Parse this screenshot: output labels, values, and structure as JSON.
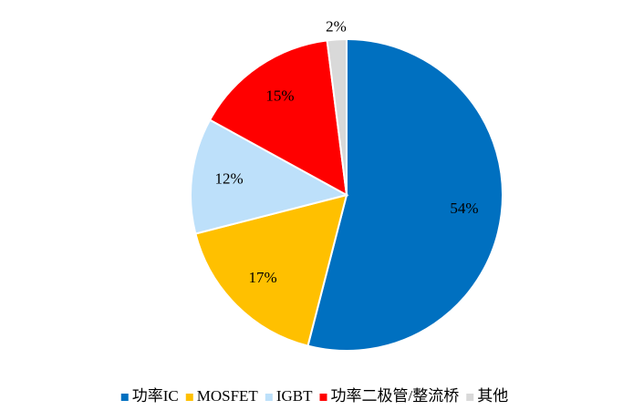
{
  "chart_data": {
    "type": "pie",
    "categories": [
      "功率IC",
      "MOSFET",
      "IGBT",
      "功率二极管/整流桥",
      "其他"
    ],
    "values": [
      54,
      17,
      12,
      15,
      2
    ],
    "value_labels": [
      "54%",
      "17%",
      "12%",
      "15%",
      "2%"
    ],
    "colors": [
      "#0070c0",
      "#ffc000",
      "#bde0fa",
      "#ff0000",
      "#d9d9d9"
    ],
    "legend": "bottom"
  }
}
